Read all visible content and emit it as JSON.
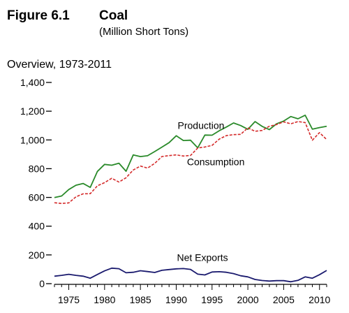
{
  "figure": {
    "number": "Figure 6.1",
    "title": "Coal",
    "subtitle": "(Million Short Tons)",
    "panel": "Overview, 1973-2011"
  },
  "chart_data": {
    "type": "line",
    "title": "Coal",
    "subtitle": "(Million Short Tons)",
    "panel_title": "Overview, 1973-2011",
    "xlabel": "",
    "ylabel": "",
    "x": [
      1973,
      1974,
      1975,
      1976,
      1977,
      1978,
      1979,
      1980,
      1981,
      1982,
      1983,
      1984,
      1985,
      1986,
      1987,
      1988,
      1989,
      1990,
      1991,
      1992,
      1993,
      1994,
      1995,
      1996,
      1997,
      1998,
      1999,
      2000,
      2001,
      2002,
      2003,
      2004,
      2005,
      2006,
      2007,
      2008,
      2009,
      2010,
      2011
    ],
    "xlim": [
      1973,
      2011
    ],
    "ylim": [
      0,
      1400
    ],
    "x_ticks": [
      1975,
      1980,
      1985,
      1990,
      1995,
      2000,
      2005,
      2010
    ],
    "y_ticks": [
      0,
      200,
      400,
      600,
      800,
      1000,
      1200,
      1400
    ],
    "y_tick_labels": [
      "0",
      "200",
      "400",
      "600",
      "800",
      "1,000",
      "1,200",
      "1,400"
    ],
    "grid": false,
    "legend": "none (series labeled directly on plot)",
    "series": [
      {
        "name": "Production",
        "color": "#2a8a2a",
        "dash": "solid",
        "values": [
          599,
          610,
          655,
          685,
          697,
          670,
          781,
          830,
          824,
          838,
          782,
          896,
          884,
          890,
          919,
          950,
          981,
          1029,
          996,
          998,
          945,
          1034,
          1033,
          1064,
          1090,
          1118,
          1100,
          1074,
          1128,
          1094,
          1072,
          1112,
          1131,
          1163,
          1147,
          1172,
          1075,
          1086,
          1095
        ]
      },
      {
        "name": "Consumption",
        "color": "#d42a2a",
        "dash": "dashed",
        "values": [
          563,
          558,
          562,
          604,
          625,
          626,
          681,
          703,
          733,
          707,
          737,
          791,
          818,
          804,
          837,
          884,
          891,
          896,
          888,
          892,
          944,
          951,
          962,
          1006,
          1030,
          1037,
          1039,
          1084,
          1060,
          1066,
          1095,
          1107,
          1126,
          1112,
          1128,
          1121,
          998,
          1051,
          1003
        ]
      },
      {
        "name": "Net Exports",
        "color": "#1a1a6e",
        "dash": "solid",
        "values": [
          52,
          58,
          65,
          58,
          52,
          38,
          64,
          89,
          108,
          104,
          76,
          79,
          90,
          84,
          78,
          93,
          98,
          103,
          105,
          99,
          66,
          61,
          81,
          83,
          79,
          70,
          55,
          47,
          29,
          22,
          18,
          21,
          21,
          13,
          23,
          47,
          38,
          62,
          92
        ]
      }
    ],
    "annotations": [
      "Production",
      "Consumption",
      "Net Exports"
    ]
  }
}
